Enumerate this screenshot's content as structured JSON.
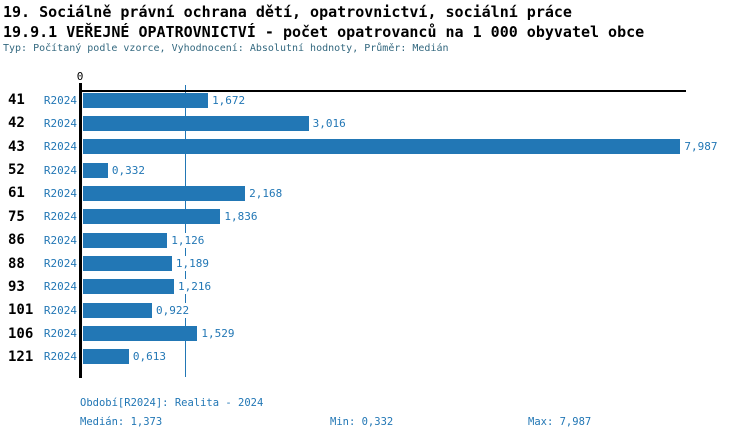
{
  "header": {
    "title_line1": "19. Sociálně právní ochrana dětí, opatrovnictví, sociální práce",
    "title_line2": "19.9.1 VEŘEJNÉ OPATROVNICTVÍ - počet opatrovanců na 1 000 obyvatel obce",
    "subtitle": "Typ: Počítaný podle vzorce, Vyhodnocení: Absolutní hodnoty, Průměr: Medián"
  },
  "chart_data": {
    "type": "bar",
    "orientation": "horizontal",
    "title": "19.9.1 VEŘEJNÉ OPATROVNICTVÍ - počet opatrovanců na 1 000 obyvatel obce",
    "categories": [
      "41",
      "42",
      "43",
      "52",
      "61",
      "75",
      "86",
      "88",
      "93",
      "101",
      "106",
      "121"
    ],
    "period_label": "R2024",
    "values": [
      1.672,
      3.016,
      7.987,
      0.332,
      2.168,
      1.836,
      1.126,
      1.189,
      1.216,
      0.922,
      1.529,
      0.613
    ],
    "value_labels": [
      "1,672",
      "3,016",
      "7,987",
      "0,332",
      "2,168",
      "1,836",
      "1,126",
      "1,189",
      "1,216",
      "0,922",
      "1,529",
      "0,613"
    ],
    "median_value": 1.373,
    "xlim": [
      0,
      8.06
    ],
    "x_origin_label": "0",
    "grid": "off",
    "legend": "none",
    "bar_color": "#2277b5",
    "median_line_color": "#2277b5"
  },
  "footer": {
    "period_info": "Období[R2024]: Realita - 2024",
    "median_label": "Medián: 1,373",
    "min_label": "Min: 0,332",
    "max_label": "Max: 7,987"
  },
  "colors": {
    "accent_blue": "#2277b5",
    "subtitle_teal": "#33687f",
    "axis_black": "#000000",
    "background": "#ffffff"
  }
}
